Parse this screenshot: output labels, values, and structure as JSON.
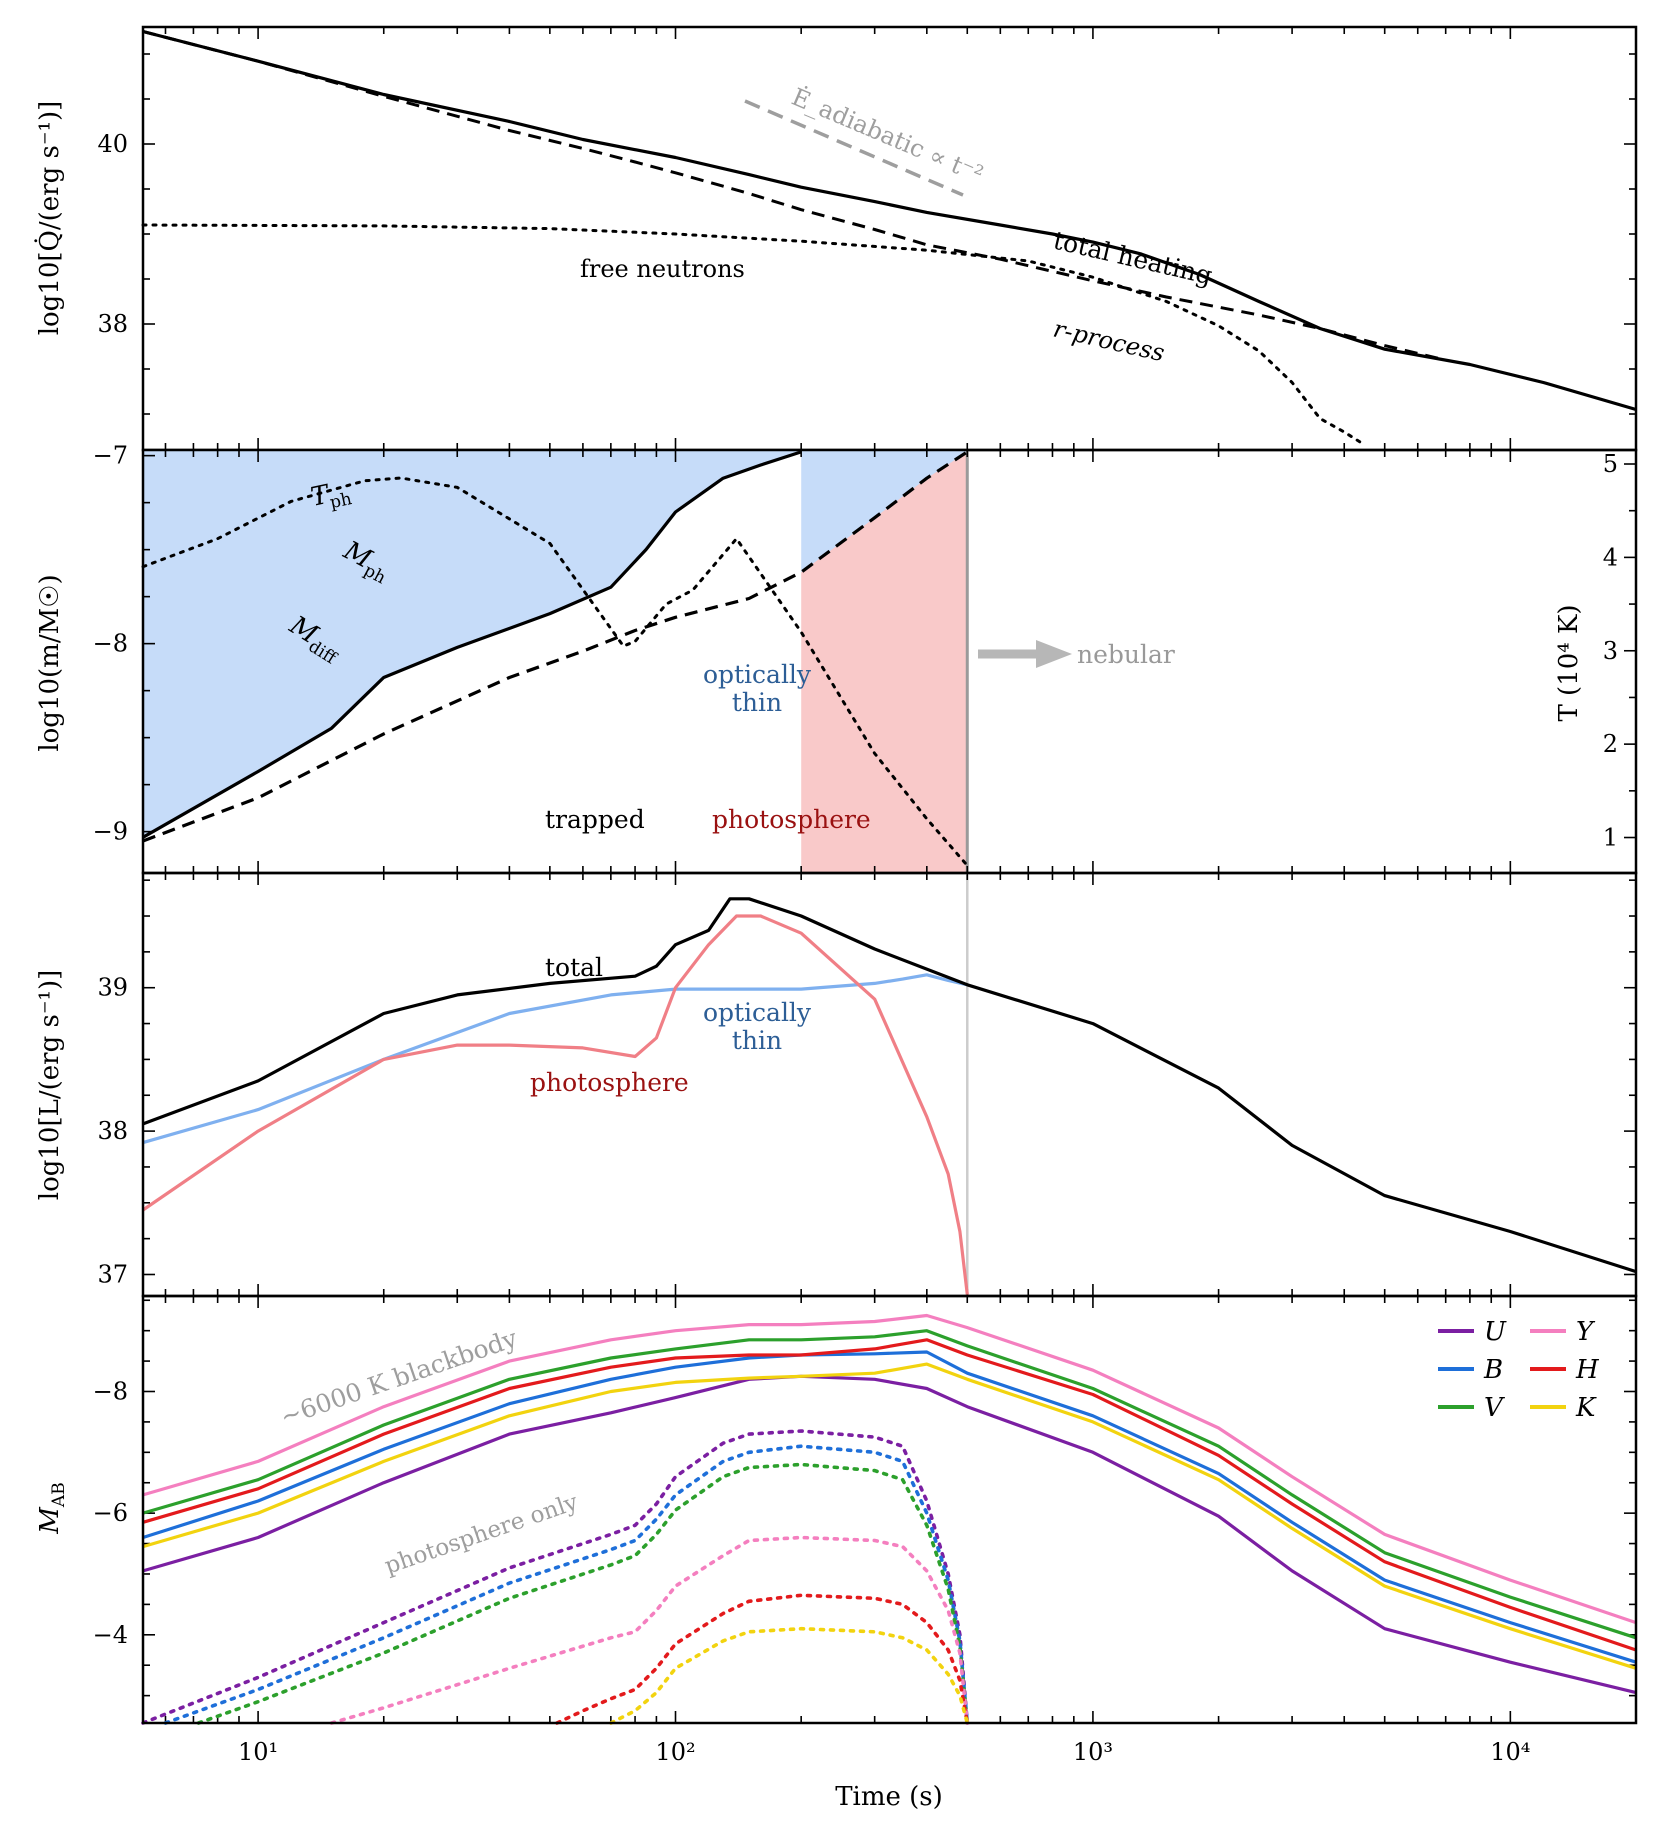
{
  "chart_data": [
    {
      "type": "line",
      "panel": "heating",
      "ylabel": "log10[Q̇/(erg s⁻¹)]",
      "yscale": "linear",
      "ylim": [
        36.6,
        41.3
      ],
      "yticks": [
        38,
        40
      ],
      "ytick_labels": [
        "38",
        "40"
      ],
      "series": [
        {
          "name": "total heating",
          "style": "solid",
          "color": "#000000",
          "x": [
            5.3,
            10,
            20,
            40,
            60,
            100,
            150,
            200,
            300,
            400,
            600,
            800,
            1000,
            1300,
            1800,
            2500,
            3500,
            5000,
            8000,
            12000,
            20000
          ],
          "y": [
            41.25,
            40.92,
            40.55,
            40.25,
            40.05,
            39.85,
            39.66,
            39.52,
            39.36,
            39.24,
            39.1,
            39.0,
            38.91,
            38.78,
            38.55,
            38.25,
            37.95,
            37.72,
            37.55,
            37.35,
            37.05
          ]
        },
        {
          "name": "r-process",
          "style": "dashed",
          "color": "#000000",
          "x": [
            5.3,
            10,
            20,
            40,
            60,
            80,
            100,
            150,
            200,
            300,
            400,
            600,
            1000,
            1500,
            2500,
            3500,
            5000,
            7000
          ],
          "y": [
            41.25,
            40.92,
            40.53,
            40.15,
            39.95,
            39.8,
            39.68,
            39.45,
            39.27,
            39.05,
            38.88,
            38.72,
            38.48,
            38.3,
            38.1,
            37.95,
            37.76,
            37.6
          ]
        },
        {
          "name": "free neutrons",
          "style": "dotted",
          "color": "#000000",
          "x": [
            5.3,
            20,
            50,
            100,
            200,
            400,
            700,
            1000,
            1500,
            2000,
            2500,
            3000,
            3500,
            4000,
            4500
          ],
          "y": [
            39.1,
            39.09,
            39.06,
            39.0,
            38.92,
            38.82,
            38.7,
            38.52,
            38.25,
            37.98,
            37.7,
            37.35,
            36.95,
            36.8,
            36.65
          ]
        }
      ],
      "annotations": [
        "free neutrons",
        "total heating",
        "r-process"
      ],
      "guide_label": "Ė_adiabatic ∝ t⁻²"
    },
    {
      "type": "area",
      "panel": "mass-coordinates",
      "ylabel": "log10(m/M☉)",
      "ylim": [
        -9.22,
        -6.97
      ],
      "yticks": [
        -9,
        -8,
        -7
      ],
      "ytick_labels": [
        "−9",
        "−8",
        "−7"
      ],
      "ylabel_right": "T (10⁴ K)",
      "ylim_right": [
        0.62,
        5.15
      ],
      "yticks_right": [
        1,
        2,
        3,
        4,
        5
      ],
      "nebular_time": 500,
      "series": [
        {
          "name": "M_ph",
          "style": "dashed",
          "color": "#000000",
          "x": [
            5.3,
            10,
            20,
            40,
            60,
            80,
            100,
            150,
            200,
            300,
            400,
            500
          ],
          "y": [
            -9.05,
            -8.82,
            -8.48,
            -8.18,
            -8.04,
            -7.93,
            -7.86,
            -7.76,
            -7.62,
            -7.33,
            -7.12,
            -6.98
          ]
        },
        {
          "name": "M_diff",
          "style": "solid",
          "color": "#000000",
          "x": [
            5.3,
            10,
            15,
            20,
            30,
            50,
            70,
            85,
            100,
            130,
            160,
            200
          ],
          "y": [
            -9.03,
            -8.68,
            -8.45,
            -8.18,
            -8.02,
            -7.84,
            -7.7,
            -7.5,
            -7.3,
            -7.12,
            -7.05,
            -6.98
          ]
        },
        {
          "name": "T_ph",
          "style": "dotted",
          "color": "#000000",
          "x": [
            5.3,
            8,
            12,
            18,
            22,
            30,
            50,
            75,
            80,
            95,
            110,
            140,
            200,
            300,
            400,
            500
          ],
          "y": [
            3.9,
            4.2,
            4.6,
            4.82,
            4.85,
            4.75,
            4.15,
            3.05,
            3.1,
            3.5,
            3.65,
            4.2,
            3.2,
            1.9,
            1.2,
            0.7
          ]
        }
      ],
      "regions": [
        "trapped",
        "photosphere",
        "optically thin"
      ],
      "annotations": [
        "nebular"
      ]
    },
    {
      "type": "line",
      "panel": "luminosity",
      "ylabel": "log10[L/(erg s⁻¹)]",
      "ylim": [
        36.85,
        39.8
      ],
      "yticks": [
        37,
        38,
        39
      ],
      "ytick_labels": [
        "37",
        "38",
        "39"
      ],
      "series": [
        {
          "name": "total",
          "style": "solid",
          "color": "#000000",
          "x": [
            5.3,
            10,
            20,
            30,
            50,
            80,
            90,
            100,
            120,
            135,
            150,
            200,
            300,
            500,
            1000,
            2000,
            3000,
            5000,
            10000,
            20000
          ],
          "y": [
            38.05,
            38.35,
            38.82,
            38.95,
            39.03,
            39.08,
            39.15,
            39.3,
            39.4,
            39.62,
            39.62,
            39.5,
            39.27,
            39.02,
            38.75,
            38.3,
            37.9,
            37.55,
            37.3,
            37.02
          ]
        },
        {
          "name": "optically thin",
          "style": "solid",
          "color": "#7fb0ef",
          "x": [
            5.3,
            10,
            20,
            40,
            70,
            100,
            150,
            200,
            300,
            350,
            400,
            450,
            500
          ],
          "y": [
            37.92,
            38.15,
            38.5,
            38.82,
            38.95,
            38.99,
            38.99,
            38.99,
            39.03,
            39.06,
            39.09,
            39.05,
            39.02
          ]
        },
        {
          "name": "photosphere",
          "style": "solid",
          "color": "#f07f86",
          "x": [
            5.3,
            10,
            20,
            30,
            40,
            60,
            80,
            90,
            100,
            120,
            140,
            160,
            200,
            300,
            400,
            450,
            480,
            500
          ],
          "y": [
            37.45,
            38.0,
            38.5,
            38.6,
            38.6,
            38.58,
            38.52,
            38.65,
            39.0,
            39.3,
            39.5,
            39.5,
            39.38,
            38.92,
            38.1,
            37.7,
            37.3,
            36.86
          ]
        }
      ],
      "annotations": [
        "total",
        "optically thin",
        "photosphere"
      ]
    },
    {
      "type": "line",
      "panel": "magnitudes",
      "ylabel": "M_AB",
      "ylim": [
        -2.55,
        -9.57
      ],
      "yticks": [
        -4,
        -6,
        -8
      ],
      "ytick_labels": [
        "−4",
        "−6",
        "−8"
      ],
      "x_label": "Time (s)",
      "xscale": "log",
      "xlim": [
        5.3,
        20000
      ],
      "xtick_labels": [
        "10¹",
        "10²",
        "10³",
        "10⁴"
      ],
      "legend_location": "top-right",
      "series": [
        {
          "name": "U",
          "color": "#7b1fa2",
          "style": "solid",
          "x": [
            5.3,
            10,
            20,
            40,
            70,
            100,
            150,
            200,
            300,
            400,
            500,
            1000,
            2000,
            3000,
            5000,
            10000,
            20000
          ],
          "y": [
            -5.05,
            -5.6,
            -6.5,
            -7.3,
            -7.65,
            -7.9,
            -8.2,
            -8.25,
            -8.2,
            -8.05,
            -7.75,
            -7.0,
            -5.95,
            -5.05,
            -4.1,
            -3.55,
            -3.05
          ]
        },
        {
          "name": "B",
          "color": "#1e6fd9",
          "style": "solid",
          "x": [
            5.3,
            10,
            20,
            40,
            70,
            100,
            150,
            200,
            300,
            400,
            500,
            1000,
            2000,
            3000,
            5000,
            10000,
            20000
          ],
          "y": [
            -5.6,
            -6.2,
            -7.05,
            -7.8,
            -8.2,
            -8.4,
            -8.55,
            -8.6,
            -8.62,
            -8.65,
            -8.3,
            -7.6,
            -6.65,
            -5.85,
            -4.9,
            -4.2,
            -3.55
          ]
        },
        {
          "name": "V",
          "color": "#2ca02c",
          "style": "solid",
          "x": [
            5.3,
            10,
            20,
            40,
            70,
            100,
            150,
            200,
            300,
            400,
            500,
            1000,
            2000,
            3000,
            5000,
            10000,
            20000
          ],
          "y": [
            -6.0,
            -6.55,
            -7.45,
            -8.2,
            -8.55,
            -8.7,
            -8.85,
            -8.85,
            -8.9,
            -9.0,
            -8.75,
            -8.05,
            -7.1,
            -6.3,
            -5.35,
            -4.62,
            -3.95
          ]
        },
        {
          "name": "Y",
          "color": "#f47fbf",
          "style": "solid",
          "x": [
            5.3,
            10,
            20,
            40,
            70,
            100,
            150,
            200,
            300,
            400,
            500,
            1000,
            2000,
            3000,
            5000,
            10000,
            20000
          ],
          "y": [
            -6.3,
            -6.85,
            -7.75,
            -8.5,
            -8.85,
            -9.0,
            -9.1,
            -9.1,
            -9.15,
            -9.25,
            -9.05,
            -8.35,
            -7.4,
            -6.6,
            -5.65,
            -4.9,
            -4.2
          ]
        },
        {
          "name": "H",
          "color": "#e31a1c",
          "style": "solid",
          "x": [
            5.3,
            10,
            20,
            40,
            70,
            100,
            150,
            200,
            300,
            400,
            500,
            1000,
            2000,
            3000,
            5000,
            10000,
            20000
          ],
          "y": [
            -5.85,
            -6.4,
            -7.3,
            -8.05,
            -8.4,
            -8.55,
            -8.6,
            -8.6,
            -8.7,
            -8.85,
            -8.6,
            -7.95,
            -6.95,
            -6.15,
            -5.2,
            -4.45,
            -3.75
          ]
        },
        {
          "name": "K",
          "color": "#f2d30f",
          "style": "solid",
          "x": [
            5.3,
            10,
            20,
            40,
            70,
            100,
            150,
            200,
            300,
            400,
            500,
            1000,
            2000,
            3000,
            5000,
            10000,
            20000
          ],
          "y": [
            -5.45,
            -6.0,
            -6.85,
            -7.6,
            -8.0,
            -8.15,
            -8.22,
            -8.25,
            -8.3,
            -8.45,
            -8.2,
            -7.5,
            -6.55,
            -5.75,
            -4.8,
            -4.1,
            -3.45
          ]
        },
        {
          "name": "U",
          "color": "#7b1fa2",
          "style": "dotted",
          "photosphere_only": true,
          "x": [
            5.3,
            10,
            20,
            40,
            70,
            80,
            90,
            100,
            130,
            150,
            200,
            300,
            350,
            400,
            450,
            480,
            500
          ],
          "y": [
            -2.55,
            -3.3,
            -4.2,
            -5.1,
            -5.65,
            -5.8,
            -6.15,
            -6.6,
            -7.15,
            -7.3,
            -7.35,
            -7.25,
            -7.1,
            -6.2,
            -5.0,
            -4.0,
            -2.55
          ]
        },
        {
          "name": "B",
          "color": "#1e6fd9",
          "style": "dotted",
          "photosphere_only": true,
          "x": [
            6.0,
            10,
            20,
            40,
            70,
            80,
            90,
            100,
            130,
            150,
            200,
            300,
            350,
            400,
            450,
            480,
            500
          ],
          "y": [
            -2.55,
            -3.1,
            -3.95,
            -4.85,
            -5.4,
            -5.55,
            -5.9,
            -6.3,
            -6.85,
            -7.0,
            -7.1,
            -7.0,
            -6.85,
            -6.0,
            -4.9,
            -3.9,
            -2.55
          ]
        },
        {
          "name": "V",
          "color": "#2ca02c",
          "style": "dotted",
          "photosphere_only": true,
          "x": [
            7.2,
            10,
            20,
            40,
            70,
            80,
            90,
            100,
            130,
            150,
            200,
            300,
            350,
            400,
            450,
            480,
            500
          ],
          "y": [
            -2.55,
            -2.9,
            -3.7,
            -4.6,
            -5.15,
            -5.3,
            -5.65,
            -6.05,
            -6.6,
            -6.75,
            -6.8,
            -6.7,
            -6.55,
            -5.8,
            -4.75,
            -3.8,
            -2.55
          ]
        },
        {
          "name": "Y",
          "color": "#f47fbf",
          "style": "dotted",
          "photosphere_only": true,
          "x": [
            15,
            20,
            40,
            70,
            80,
            90,
            100,
            130,
            150,
            200,
            300,
            350,
            400,
            450,
            480,
            500
          ],
          "y": [
            -2.55,
            -2.8,
            -3.45,
            -3.95,
            -4.05,
            -4.4,
            -4.8,
            -5.3,
            -5.55,
            -5.6,
            -5.55,
            -5.45,
            -5.05,
            -4.4,
            -3.7,
            -2.55
          ]
        },
        {
          "name": "H",
          "color": "#e31a1c",
          "style": "dotted",
          "photosphere_only": true,
          "x": [
            52,
            60,
            70,
            80,
            90,
            100,
            130,
            150,
            200,
            300,
            350,
            400,
            450,
            480,
            500
          ],
          "y": [
            -2.55,
            -2.75,
            -2.95,
            -3.1,
            -3.45,
            -3.85,
            -4.35,
            -4.55,
            -4.65,
            -4.6,
            -4.5,
            -4.2,
            -3.75,
            -3.25,
            -2.55
          ]
        },
        {
          "name": "K",
          "color": "#f2d30f",
          "style": "dotted",
          "photosphere_only": true,
          "x": [
            70,
            80,
            90,
            100,
            130,
            150,
            200,
            300,
            350,
            400,
            450,
            480,
            500
          ],
          "y": [
            -2.55,
            -2.75,
            -3.05,
            -3.45,
            -3.9,
            -4.05,
            -4.1,
            -4.05,
            -3.95,
            -3.75,
            -3.35,
            -3.0,
            -2.55
          ]
        }
      ],
      "annotations": [
        "~6000 K blackbody",
        "photosphere only"
      ]
    }
  ]
}
